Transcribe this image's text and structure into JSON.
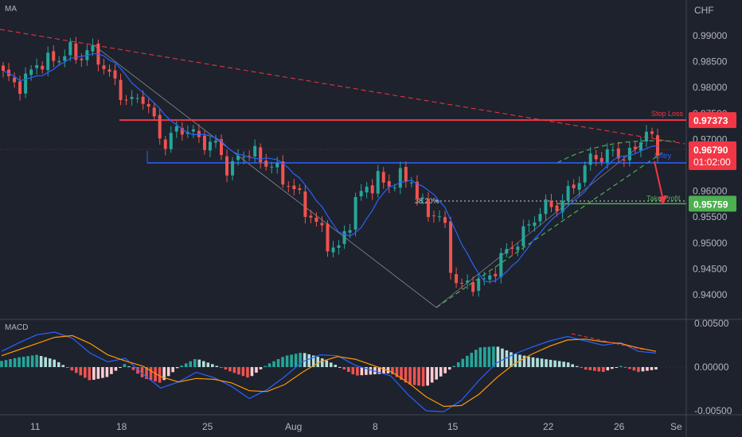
{
  "chart_data": {
    "type": "candlestick",
    "symbol_currency": "CHF",
    "indicator_label": "MA",
    "y_ticks": [
      "0.99000",
      "0.98500",
      "0.98000",
      "0.97500",
      "0.97000",
      "0.96500",
      "0.96000",
      "0.95500",
      "0.95000",
      "0.94500",
      "0.94000"
    ],
    "x_ticks": [
      "11",
      "18",
      "25",
      "Aug",
      "8",
      "15",
      "22",
      "26",
      "Se"
    ],
    "levels": {
      "stop_loss": {
        "label": "Stop Loss",
        "value": "0.97373",
        "color": "#f23645"
      },
      "entry": {
        "label": "Entry",
        "value": "0.96500",
        "color": "#2962ff"
      },
      "take_profit": {
        "label": "Take Profit",
        "value": "0.95759",
        "color": "#4caf50"
      },
      "fib": {
        "label": "38.20%",
        "value": 0.9576
      }
    },
    "current_price": {
      "value": "0.96790",
      "countdown": "01:02:00",
      "color": "#f23645"
    },
    "key_prices": [
      0.982,
      0.9808,
      0.9815,
      0.984,
      0.9848,
      0.986,
      0.9872,
      0.985,
      0.988,
      0.9855,
      0.9815,
      0.979,
      0.9775,
      0.978,
      0.9735,
      0.9695,
      0.9712,
      0.9718,
      0.9708,
      0.9695,
      0.968,
      0.964,
      0.967,
      0.9675,
      0.9655,
      0.966,
      0.962,
      0.9605,
      0.9575,
      0.9545,
      0.9505,
      0.948,
      0.953,
      0.9582,
      0.9608,
      0.9628,
      0.961,
      0.962,
      0.963,
      0.957,
      0.9552,
      0.9548,
      0.943,
      0.9408,
      0.9425,
      0.943,
      0.9455,
      0.948,
      0.951,
      0.9535,
      0.9555,
      0.9575,
      0.9578,
      0.9605,
      0.9628,
      0.9685,
      0.9655,
      0.968,
      0.966,
      0.9695,
      0.9705,
      0.9685
    ],
    "macd": {
      "label": "MACD",
      "y_ticks": [
        "0.00500",
        "0.00000",
        "-0.00500"
      ],
      "macd_line": [
        0.0018,
        0.0028,
        0.0037,
        0.004,
        0.0033,
        0.0016,
        0.0006,
        0.001,
        -0.0008,
        -0.0024,
        -0.0017,
        -0.0006,
        -0.0012,
        -0.0022,
        -0.0036,
        -0.0026,
        -0.0011,
        0.0006,
        0.0014,
        0.0013,
        0.0002,
        -0.0004,
        -0.001,
        -0.0032,
        -0.005,
        -0.0051,
        -0.0038,
        -0.0015,
        0.0005,
        0.0015,
        0.0023,
        0.003,
        0.0035,
        0.003,
        0.0025,
        0.0028,
        0.0018,
        0.0016
      ],
      "signal_line": [
        0.0013,
        0.002,
        0.0027,
        0.0034,
        0.0036,
        0.0027,
        0.0014,
        0.0007,
        0.0001,
        -0.0011,
        -0.0017,
        -0.0013,
        -0.0014,
        -0.0018,
        -0.0027,
        -0.0028,
        -0.002,
        -0.0006,
        0.0006,
        0.0012,
        0.0009,
        0.0002,
        -0.0005,
        -0.0018,
        -0.0034,
        -0.0045,
        -0.0044,
        -0.0031,
        -0.0012,
        0.0004,
        0.0015,
        0.0024,
        0.0031,
        0.0032,
        0.0029,
        0.0027,
        0.0022,
        0.0018
      ]
    }
  }
}
